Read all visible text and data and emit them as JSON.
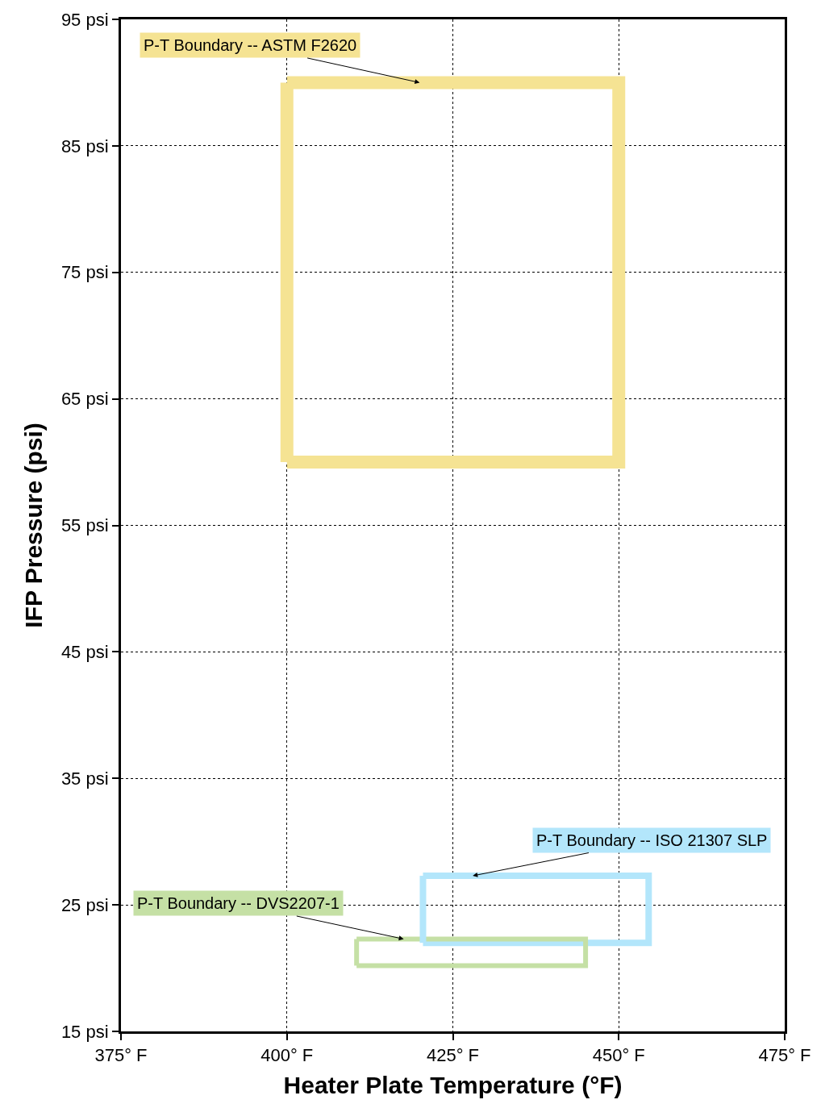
{
  "chart_data": {
    "type": "line",
    "xlabel": "Heater Plate Temperature (°F)",
    "ylabel": "IFP Pressure (psi)",
    "series": [
      {
        "color": "#f5e393",
        "x": [
          400,
          450,
          450,
          400
        ],
        "values": [
          60,
          60,
          90,
          90
        ]
      },
      {
        "color": "#b3e6fb",
        "x": [
          420.5,
          454.5,
          454.5,
          420.5
        ],
        "values": [
          22,
          22,
          27.3,
          27.3
        ]
      },
      {
        "color": "#c5e0a5",
        "x": [
          410.5,
          445,
          445,
          410.5
        ],
        "values": [
          20.2,
          20.2,
          22.3,
          22.3
        ]
      },
      {
        "color": "#f5e393",
        "x": [
          400,
          400
        ],
        "values": [
          90,
          60
        ]
      },
      {
        "color": "#b3e6fb",
        "x": [
          420.5,
          420.5
        ],
        "values": [
          27.3,
          22
        ]
      },
      {
        "color": "#c5e0a5",
        "x": [
          410.5,
          410.5
        ],
        "values": [
          22.3,
          20.2
        ]
      }
    ],
    "annotations": [
      {
        "text": "P-T Boundary -- ASTM F2620",
        "x": 420,
        "y": 90
      },
      {
        "text": "P-T Boundary -- ISO 21307 SLP",
        "x": 428,
        "y": 27.3
      },
      {
        "text": "P-T Boundary -- DVS2207-1",
        "x": 417.6,
        "y": 22.3
      }
    ],
    "xlim": [
      375,
      475
    ],
    "ylim": [
      15,
      95
    ],
    "xticks": [
      {
        "value": 375,
        "label": "375° F"
      },
      {
        "value": 400,
        "label": "400° F"
      },
      {
        "value": 425,
        "label": "425° F"
      },
      {
        "value": 450,
        "label": "450° F"
      },
      {
        "value": 475,
        "label": "475° F"
      }
    ],
    "yticks": [
      {
        "value": 15,
        "label": "15 psi"
      },
      {
        "value": 25,
        "label": "25 psi"
      },
      {
        "value": 35,
        "label": "35 psi"
      },
      {
        "value": 45,
        "label": "45 psi"
      },
      {
        "value": 55,
        "label": "55 psi"
      },
      {
        "value": 65,
        "label": "65 psi"
      },
      {
        "value": 75,
        "label": "75 psi"
      },
      {
        "value": 85,
        "label": "85 psi"
      },
      {
        "value": 95,
        "label": "95 psi"
      }
    ],
    "grid": true,
    "marker": "none",
    "line_style": "solid"
  }
}
